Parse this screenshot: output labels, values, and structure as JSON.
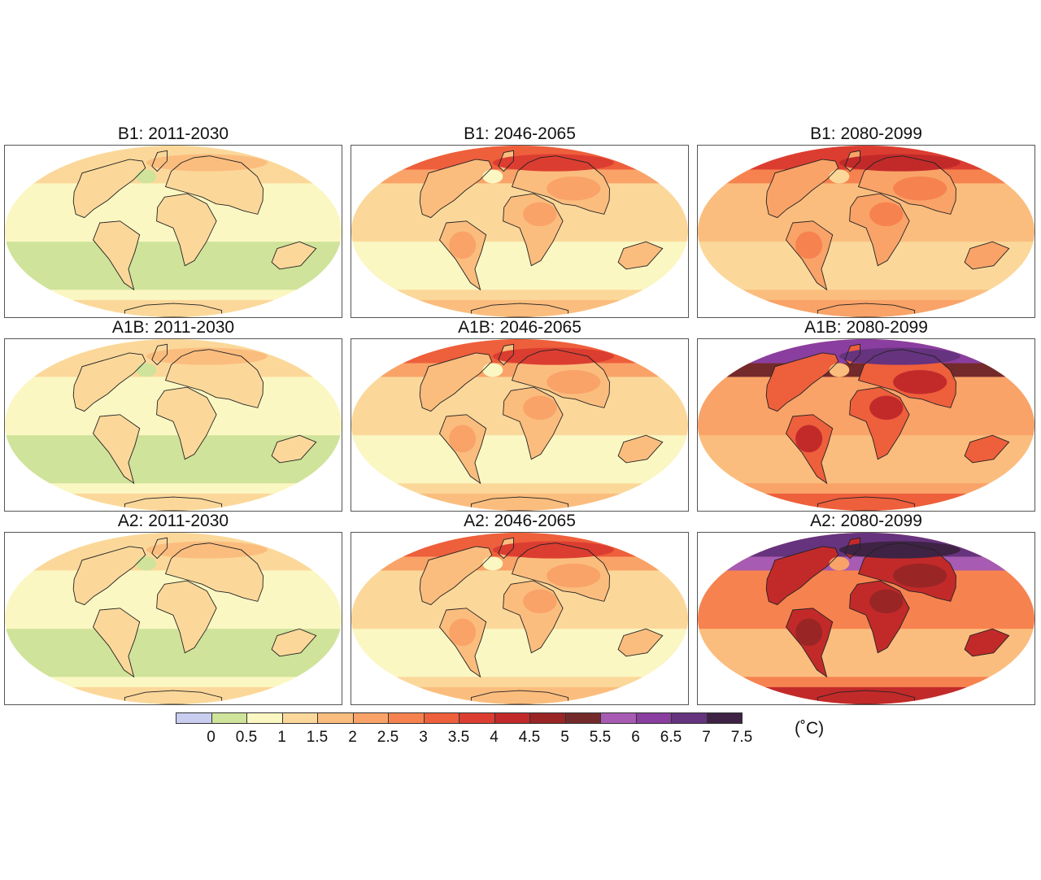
{
  "panels": [
    {
      "title": "B1: 2011-2030",
      "level": 1
    },
    {
      "title": "B1: 2046-2065",
      "level": 2
    },
    {
      "title": "B1: 2080-2099",
      "level": 3
    },
    {
      "title": "A1B: 2011-2030",
      "level": 1
    },
    {
      "title": "A1B: 2046-2065",
      "level": 2
    },
    {
      "title": "A1B: 2080-2099",
      "level": 4
    },
    {
      "title": "A2: 2011-2030",
      "level": 1
    },
    {
      "title": "A2: 2046-2065",
      "level": 2
    },
    {
      "title": "A2: 2080-2099",
      "level": 5
    }
  ],
  "colorbar": {
    "units": "(˚C)",
    "ticks": [
      "0",
      "0.5",
      "1",
      "1.5",
      "2",
      "2.5",
      "3",
      "3.5",
      "4",
      "4.5",
      "5",
      "5.5",
      "6",
      "6.5",
      "7",
      "7.5"
    ],
    "colors": [
      "#c9cdf0",
      "#cfe39a",
      "#fbf7c2",
      "#fbd89a",
      "#fbbd7e",
      "#f9a368",
      "#f6834f",
      "#ee5f3c",
      "#dc3d31",
      "#c22a2a",
      "#9a2525",
      "#742a2a",
      "#a75bb2",
      "#8a3e9f",
      "#66337e",
      "#3e2344"
    ]
  }
}
